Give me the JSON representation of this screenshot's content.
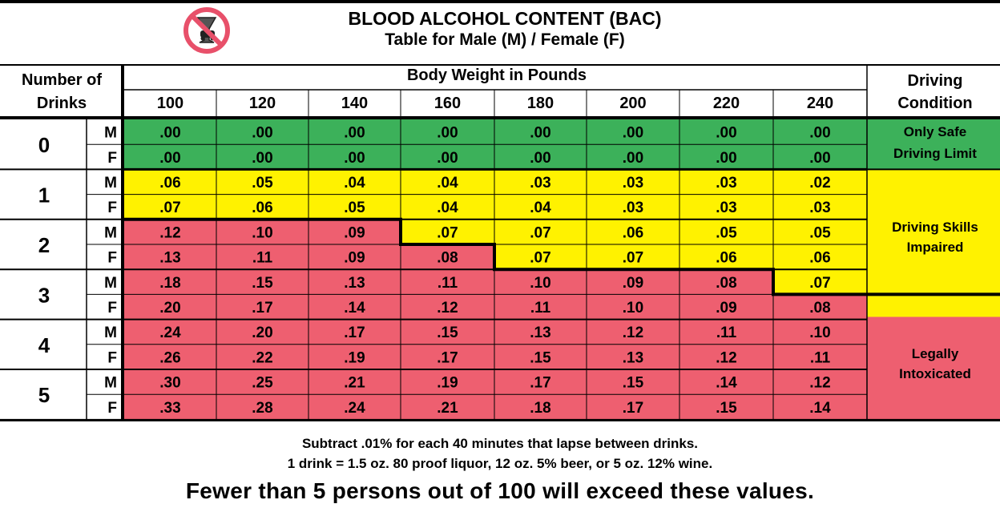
{
  "header": {
    "title": "BLOOD ALCOHOL CONTENT (BAC)",
    "subtitle": "Table for Male (M) / Female (F)",
    "icon": "no-drinking-and-driving-icon"
  },
  "table": {
    "drinks_header_line1": "Number of",
    "drinks_header_line2": "Drinks",
    "weight_header": "Body Weight in Pounds",
    "condition_header_line1": "Driving",
    "condition_header_line2": "Condition",
    "conditions": {
      "safe_line1": "Only Safe",
      "safe_line2": "Driving Limit",
      "impaired_line1": "Driving Skills",
      "impaired_line2": "Impaired",
      "intoxicated_line1": "Legally",
      "intoxicated_line2": "Intoxicated"
    }
  },
  "colors": {
    "safe": "#3cb15a",
    "impaired": "#fff200",
    "intoxicated": "#ee5f70",
    "border": "#000000"
  },
  "chart_data": {
    "type": "table",
    "title": "BLOOD ALCOHOL CONTENT (BAC)",
    "subtitle": "Table for Male (M) / Female (F)",
    "column_header": "Body Weight in Pounds",
    "weights": [
      "100",
      "120",
      "140",
      "160",
      "180",
      "200",
      "220",
      "240"
    ],
    "rows": [
      {
        "drinks": "0",
        "sex": "M",
        "values": [
          ".00",
          ".00",
          ".00",
          ".00",
          ".00",
          ".00",
          ".00",
          ".00"
        ],
        "zones": [
          "S",
          "S",
          "S",
          "S",
          "S",
          "S",
          "S",
          "S"
        ]
      },
      {
        "drinks": "0",
        "sex": "F",
        "values": [
          ".00",
          ".00",
          ".00",
          ".00",
          ".00",
          ".00",
          ".00",
          ".00"
        ],
        "zones": [
          "S",
          "S",
          "S",
          "S",
          "S",
          "S",
          "S",
          "S"
        ]
      },
      {
        "drinks": "1",
        "sex": "M",
        "values": [
          ".06",
          ".05",
          ".04",
          ".04",
          ".03",
          ".03",
          ".03",
          ".02"
        ],
        "zones": [
          "Y",
          "Y",
          "Y",
          "Y",
          "Y",
          "Y",
          "Y",
          "Y"
        ]
      },
      {
        "drinks": "1",
        "sex": "F",
        "values": [
          ".07",
          ".06",
          ".05",
          ".04",
          ".04",
          ".03",
          ".03",
          ".03"
        ],
        "zones": [
          "Y",
          "Y",
          "Y",
          "Y",
          "Y",
          "Y",
          "Y",
          "Y"
        ]
      },
      {
        "drinks": "2",
        "sex": "M",
        "values": [
          ".12",
          ".10",
          ".09",
          ".07",
          ".07",
          ".06",
          ".05",
          ".05"
        ],
        "zones": [
          "R",
          "R",
          "R",
          "Y",
          "Y",
          "Y",
          "Y",
          "Y"
        ]
      },
      {
        "drinks": "2",
        "sex": "F",
        "values": [
          ".13",
          ".11",
          ".09",
          ".08",
          ".07",
          ".07",
          ".06",
          ".06"
        ],
        "zones": [
          "R",
          "R",
          "R",
          "R",
          "Y",
          "Y",
          "Y",
          "Y"
        ]
      },
      {
        "drinks": "3",
        "sex": "M",
        "values": [
          ".18",
          ".15",
          ".13",
          ".11",
          ".10",
          ".09",
          ".08",
          ".07"
        ],
        "zones": [
          "R",
          "R",
          "R",
          "R",
          "R",
          "R",
          "R",
          "Y"
        ]
      },
      {
        "drinks": "3",
        "sex": "F",
        "values": [
          ".20",
          ".17",
          ".14",
          ".12",
          ".11",
          ".10",
          ".09",
          ".08"
        ],
        "zones": [
          "R",
          "R",
          "R",
          "R",
          "R",
          "R",
          "R",
          "R"
        ]
      },
      {
        "drinks": "4",
        "sex": "M",
        "values": [
          ".24",
          ".20",
          ".17",
          ".15",
          ".13",
          ".12",
          ".11",
          ".10"
        ],
        "zones": [
          "R",
          "R",
          "R",
          "R",
          "R",
          "R",
          "R",
          "R"
        ]
      },
      {
        "drinks": "4",
        "sex": "F",
        "values": [
          ".26",
          ".22",
          ".19",
          ".17",
          ".15",
          ".13",
          ".12",
          ".11"
        ],
        "zones": [
          "R",
          "R",
          "R",
          "R",
          "R",
          "R",
          "R",
          "R"
        ]
      },
      {
        "drinks": "5",
        "sex": "M",
        "values": [
          ".30",
          ".25",
          ".21",
          ".19",
          ".17",
          ".15",
          ".14",
          ".12"
        ],
        "zones": [
          "R",
          "R",
          "R",
          "R",
          "R",
          "R",
          "R",
          "R"
        ]
      },
      {
        "drinks": "5",
        "sex": "F",
        "values": [
          ".33",
          ".28",
          ".24",
          ".21",
          ".18",
          ".17",
          ".15",
          ".14"
        ],
        "zones": [
          "R",
          "R",
          "R",
          "R",
          "R",
          "R",
          "R",
          "R"
        ]
      }
    ]
  },
  "footer": {
    "note1": "Subtract .01% for each 40 minutes that lapse between drinks.",
    "note2": "1 drink = 1.5 oz. 80 proof liquor, 12 oz. 5% beer, or 5 oz. 12% wine.",
    "note3": "Fewer than 5 persons out of 100 will exceed these values."
  }
}
